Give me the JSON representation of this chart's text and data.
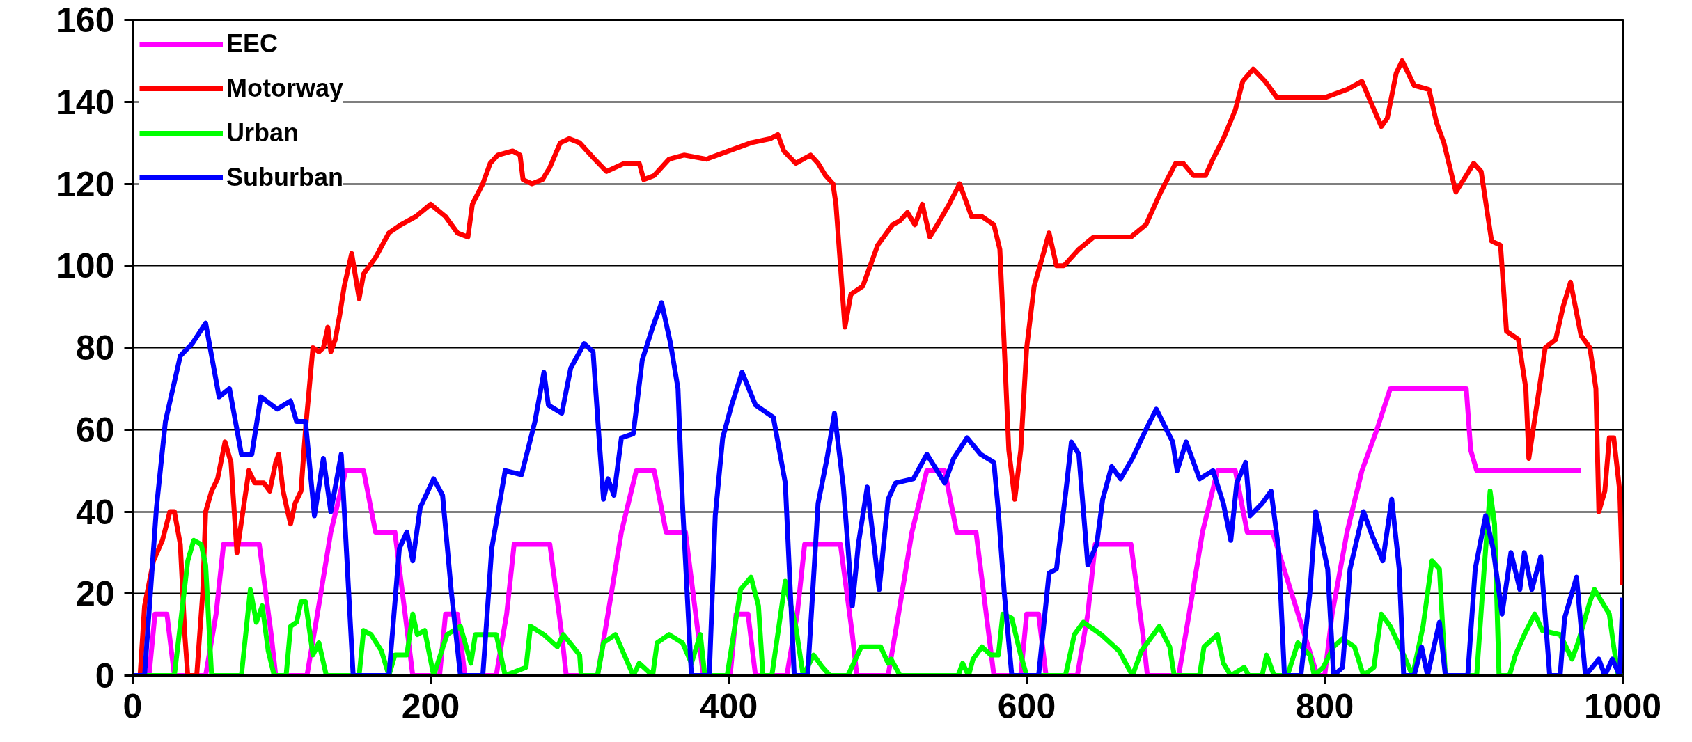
{
  "chart_data": {
    "type": "line",
    "line_style": "solid",
    "marker": "none",
    "grid": "y",
    "legend": "top left",
    "xlim": [
      0,
      1000
    ],
    "xticks": [
      0,
      200,
      400,
      600,
      800,
      1000
    ],
    "ylim": [
      0,
      160
    ],
    "yticks": [
      0,
      20,
      40,
      60,
      80,
      100,
      120,
      140,
      160
    ],
    "series": [
      {
        "name": "EEC",
        "color": "#ff00ff",
        "x": [
          0,
          11,
          15,
          23,
          28,
          49,
          56,
          61,
          85,
          93,
          96,
          117,
          124,
          133,
          143,
          155,
          163,
          176,
          188,
          195,
          206,
          210,
          218,
          223,
          244,
          251,
          256,
          280,
          288,
          291,
          312,
          319,
          328,
          338,
          350,
          358,
          371,
          383,
          390,
          401,
          405,
          413,
          418,
          439,
          446,
          451,
          475,
          483,
          486,
          507,
          514,
          523,
          533,
          545,
          553,
          566,
          578,
          585,
          596,
          600,
          608,
          613,
          634,
          641,
          646,
          670,
          678,
          681,
          702,
          709,
          718,
          728,
          740,
          748,
          765,
          795,
          800,
          805,
          815,
          825,
          835,
          844,
          895,
          898,
          902,
          972
        ],
        "values": [
          0,
          0,
          15,
          15,
          0,
          0,
          15,
          32,
          32,
          10,
          0,
          0,
          15,
          35,
          50,
          50,
          35,
          35,
          0,
          0,
          0,
          15,
          15,
          0,
          0,
          15,
          32,
          32,
          10,
          0,
          0,
          15,
          35,
          50,
          50,
          35,
          35,
          0,
          0,
          0,
          15,
          15,
          0,
          0,
          15,
          32,
          32,
          10,
          0,
          0,
          15,
          35,
          50,
          50,
          35,
          35,
          0,
          0,
          0,
          15,
          15,
          0,
          0,
          15,
          32,
          32,
          10,
          0,
          0,
          15,
          35,
          50,
          50,
          35,
          35,
          0,
          0,
          15,
          35,
          50,
          60,
          70,
          70,
          55,
          50,
          50
        ]
      },
      {
        "name": "Motorway",
        "color": "#ff0000",
        "x": [
          0,
          5,
          8,
          14,
          20,
          25,
          28,
          32,
          35,
          37,
          43,
          47,
          49,
          53,
          57,
          62,
          66,
          70,
          74,
          78,
          82,
          88,
          92,
          96,
          98,
          101,
          104,
          106,
          109,
          113,
          116,
          119,
          121,
          125,
          128,
          131,
          133,
          136,
          139,
          142,
          147,
          152,
          155,
          163,
          172,
          180,
          190,
          200,
          210,
          218,
          225,
          228,
          235,
          240,
          245,
          255,
          260,
          262,
          268,
          275,
          280,
          287,
          293,
          300,
          310,
          318,
          330,
          340,
          343,
          350,
          360,
          370,
          385,
          400,
          415,
          428,
          433,
          437,
          445,
          455,
          460,
          465,
          470,
          472,
          476,
          478,
          482,
          490,
          495,
          500,
          510,
          515,
          520,
          525,
          530,
          535,
          540,
          548,
          555,
          563,
          570,
          578,
          582,
          585,
          588,
          592,
          596,
          600,
          605,
          612,
          615,
          620,
          625,
          635,
          645,
          660,
          670,
          680,
          690,
          700,
          705,
          712,
          720,
          725,
          732,
          740,
          745,
          752,
          760,
          768,
          780,
          800,
          815,
          825,
          832,
          838,
          842,
          848,
          852,
          860,
          870,
          875,
          880,
          888,
          895,
          900,
          905,
          912,
          918,
          922,
          930,
          935,
          937,
          944,
          948,
          955,
          960,
          965,
          972,
          978,
          982,
          984,
          988,
          991,
          994,
          998,
          1000
        ],
        "values": [
          0,
          0,
          17,
          28,
          33,
          40,
          40,
          32,
          10,
          0,
          0,
          20,
          40,
          45,
          48,
          57,
          52,
          30,
          40,
          50,
          47,
          47,
          45,
          52,
          54,
          45,
          40,
          37,
          42,
          45,
          60,
          72,
          80,
          79,
          80,
          85,
          79,
          82,
          88,
          95,
          103,
          92,
          98,
          102,
          108,
          110,
          112,
          115,
          112,
          108,
          107,
          115,
          120,
          125,
          127,
          128,
          127,
          121,
          120,
          121,
          124,
          130,
          131,
          130,
          126,
          123,
          125,
          125,
          121,
          122,
          126,
          127,
          126,
          128,
          130,
          131,
          132,
          128,
          125,
          127,
          125,
          122,
          120,
          115,
          95,
          85,
          93,
          95,
          100,
          105,
          110,
          111,
          113,
          110,
          115,
          107,
          110,
          115,
          120,
          112,
          112,
          110,
          104,
          80,
          55,
          43,
          55,
          80,
          95,
          104,
          108,
          100,
          100,
          104,
          107,
          107,
          107,
          110,
          118,
          125,
          125,
          122,
          122,
          126,
          131,
          138,
          145,
          148,
          145,
          141,
          141,
          141,
          143,
          145,
          139,
          134,
          136,
          147,
          150,
          144,
          143,
          135,
          130,
          118,
          122,
          125,
          123,
          106,
          105,
          84,
          82,
          70,
          53,
          70,
          80,
          82,
          90,
          96,
          83,
          80,
          70,
          40,
          45,
          58,
          58,
          45,
          22
        ]
      },
      {
        "name": "Urban",
        "color": "#00ff00",
        "x": [
          0,
          28,
          37,
          41,
          46,
          49,
          53,
          73,
          79,
          83,
          87,
          91,
          95,
          103,
          106,
          110,
          113,
          116,
          121,
          125,
          130,
          152,
          155,
          160,
          167,
          172,
          176,
          184,
          188,
          191,
          196,
          202,
          211,
          220,
          227,
          230,
          244,
          250,
          264,
          267,
          276,
          285,
          289,
          300,
          301,
          312,
          316,
          324,
          330,
          336,
          340,
          349,
          352,
          360,
          369,
          375,
          381,
          384,
          399,
          408,
          415,
          420,
          423,
          429,
          438,
          445,
          450,
          457,
          463,
          468,
          480,
          489,
          502,
          507,
          509,
          515,
          554,
          557,
          561,
          564,
          570,
          576,
          581,
          584,
          590,
          596,
          600,
          626,
          632,
          638,
          650,
          662,
          671,
          677,
          689,
          696,
          699,
          716,
          719,
          728,
          732,
          737,
          746,
          749,
          758,
          761,
          766,
          775,
          782,
          790,
          793,
          799,
          806,
          812,
          820,
          826,
          833,
          838,
          844,
          853,
          859,
          866,
          872,
          877,
          881,
          902,
          907,
          911,
          914,
          917,
          924,
          928,
          934,
          941,
          946,
          958,
          966,
          970,
          978,
          981,
          991,
          994,
          997,
          1000
        ],
        "values": [
          0,
          0,
          28,
          33,
          32,
          27,
          0,
          0,
          21,
          13,
          17,
          6,
          0,
          0,
          12,
          13,
          18,
          18,
          5,
          8,
          0,
          0,
          11,
          10,
          6,
          0,
          5,
          5,
          15,
          10,
          11,
          0,
          10,
          12,
          3,
          10,
          10,
          0,
          2,
          12,
          10,
          7,
          10,
          5,
          0,
          0,
          8,
          10,
          5,
          0,
          3,
          0,
          8,
          10,
          8,
          3,
          10,
          0,
          0,
          21,
          24,
          17,
          0,
          0,
          23,
          12,
          0,
          5,
          2,
          0,
          0,
          7,
          7,
          3,
          4,
          0,
          0,
          3,
          0,
          4,
          7,
          5,
          5,
          15,
          14,
          5,
          0,
          0,
          10,
          13,
          10,
          6,
          0,
          6,
          12,
          7,
          0,
          0,
          7,
          10,
          3,
          0,
          2,
          0,
          0,
          5,
          0,
          0,
          8,
          5,
          0,
          2,
          7,
          9,
          7,
          0,
          2,
          15,
          12,
          5,
          0,
          12,
          28,
          26,
          0,
          0,
          26,
          45,
          37,
          0,
          0,
          5,
          10,
          15,
          11,
          10,
          4,
          8,
          18,
          21,
          15,
          7,
          0,
          0
        ]
      },
      {
        "name": "Suburban",
        "color": "#0000ff",
        "x": [
          0,
          8,
          16,
          22,
          32,
          40,
          49,
          55,
          58,
          65,
          73,
          80,
          86,
          97,
          106,
          110,
          116,
          122,
          128,
          133,
          140,
          148,
          172,
          179,
          184,
          188,
          193,
          202,
          208,
          214,
          220,
          235,
          241,
          250,
          261,
          270,
          276,
          279,
          288,
          294,
          303,
          309,
          313,
          316,
          319,
          323,
          328,
          336,
          342,
          349,
          355,
          361,
          366,
          369,
          375,
          387,
          391,
          396,
          402,
          409,
          418,
          430,
          438,
          444,
          453,
          460,
          466,
          471,
          477,
          483,
          487,
          493,
          501,
          507,
          512,
          524,
          533,
          545,
          551,
          560,
          569,
          578,
          581,
          585,
          590,
          608,
          615,
          620,
          626,
          630,
          635,
          641,
          647,
          651,
          657,
          663,
          671,
          680,
          687,
          698,
          701,
          707,
          716,
          725,
          732,
          737,
          741,
          747,
          750,
          758,
          764,
          769,
          773,
          784,
          790,
          794,
          802,
          806,
          812,
          817,
          826,
          832,
          839,
          845,
          850,
          853,
          860,
          865,
          869,
          877,
          881,
          896,
          901,
          908,
          913,
          919,
          925,
          931,
          934,
          939,
          945,
          951,
          958,
          961,
          969,
          975,
          984,
          988,
          993,
          998,
          1000
        ],
        "values": [
          0,
          0,
          41,
          62,
          78,
          81,
          86,
          74,
          68,
          70,
          54,
          54,
          68,
          65,
          67,
          62,
          62,
          39,
          53,
          40,
          54,
          0,
          0,
          31,
          35,
          28,
          41,
          48,
          44,
          20,
          0,
          0,
          31,
          50,
          49,
          62,
          74,
          66,
          64,
          75,
          81,
          79,
          58,
          43,
          48,
          44,
          58,
          59,
          77,
          85,
          91,
          81,
          70,
          42,
          0,
          0,
          39,
          58,
          66,
          74,
          66,
          63,
          47,
          0,
          0,
          42,
          53,
          64,
          46,
          17,
          32,
          46,
          21,
          43,
          47,
          48,
          54,
          47,
          53,
          58,
          54,
          52,
          40,
          20,
          0,
          0,
          25,
          26,
          44,
          57,
          54,
          27,
          32,
          43,
          51,
          48,
          53,
          60,
          65,
          57,
          50,
          57,
          48,
          50,
          42,
          33,
          47,
          52,
          39,
          42,
          45,
          31,
          0,
          0,
          20,
          40,
          26,
          0,
          2,
          26,
          40,
          34,
          28,
          43,
          26,
          0,
          0,
          7,
          0,
          13,
          0,
          0,
          26,
          39,
          31,
          15,
          30,
          21,
          30,
          21,
          29,
          0,
          0,
          14,
          24,
          0,
          4,
          0,
          4,
          0,
          19
        ]
      }
    ]
  }
}
